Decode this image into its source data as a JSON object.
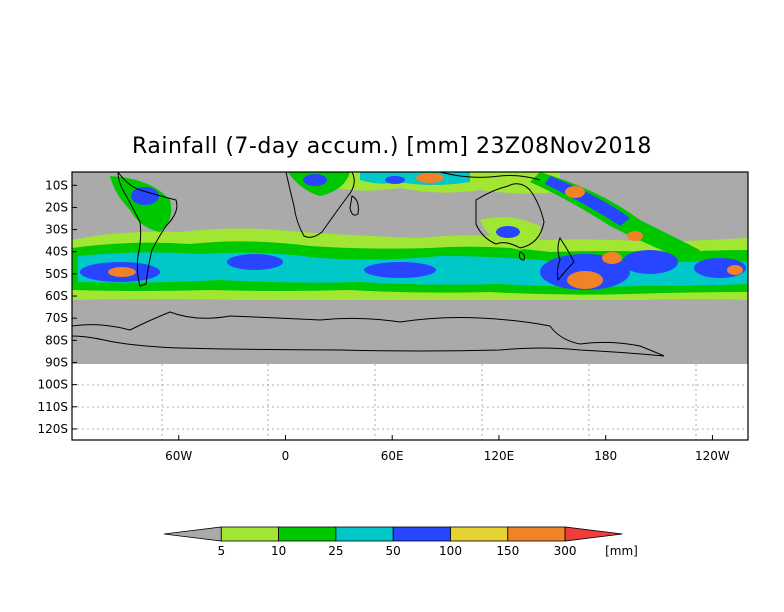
{
  "title": "Rainfall (7-day accum.) [mm] 23Z08Nov2018",
  "map": {
    "lon_range": [
      -120,
      260
    ],
    "lat_range": [
      -125,
      -4
    ],
    "data_lat_range": [
      -90,
      -4
    ],
    "background_color": "#aaaaaa",
    "grid": "dotted",
    "lat_labels": [
      "10S",
      "20S",
      "30S",
      "40S",
      "50S",
      "60S",
      "70S",
      "80S",
      "90S",
      "100S",
      "110S",
      "120S"
    ],
    "lat_values": [
      -10,
      -20,
      -30,
      -40,
      -50,
      -60,
      -70,
      -80,
      -90,
      -100,
      -110,
      -120
    ],
    "lon_labels": [
      "60W",
      "0",
      "60E",
      "120E",
      "180",
      "120W"
    ],
    "lon_values": [
      -60,
      0,
      60,
      120,
      180,
      240
    ]
  },
  "colorbar": {
    "unit": "[mm]",
    "thresholds": [
      "5",
      "10",
      "25",
      "50",
      "100",
      "150",
      "300"
    ],
    "colors": [
      "#aaaaaa",
      "#a0e632",
      "#00c800",
      "#00c8c8",
      "#2846ff",
      "#e6d232",
      "#f08228",
      "#f03c3c"
    ]
  }
}
